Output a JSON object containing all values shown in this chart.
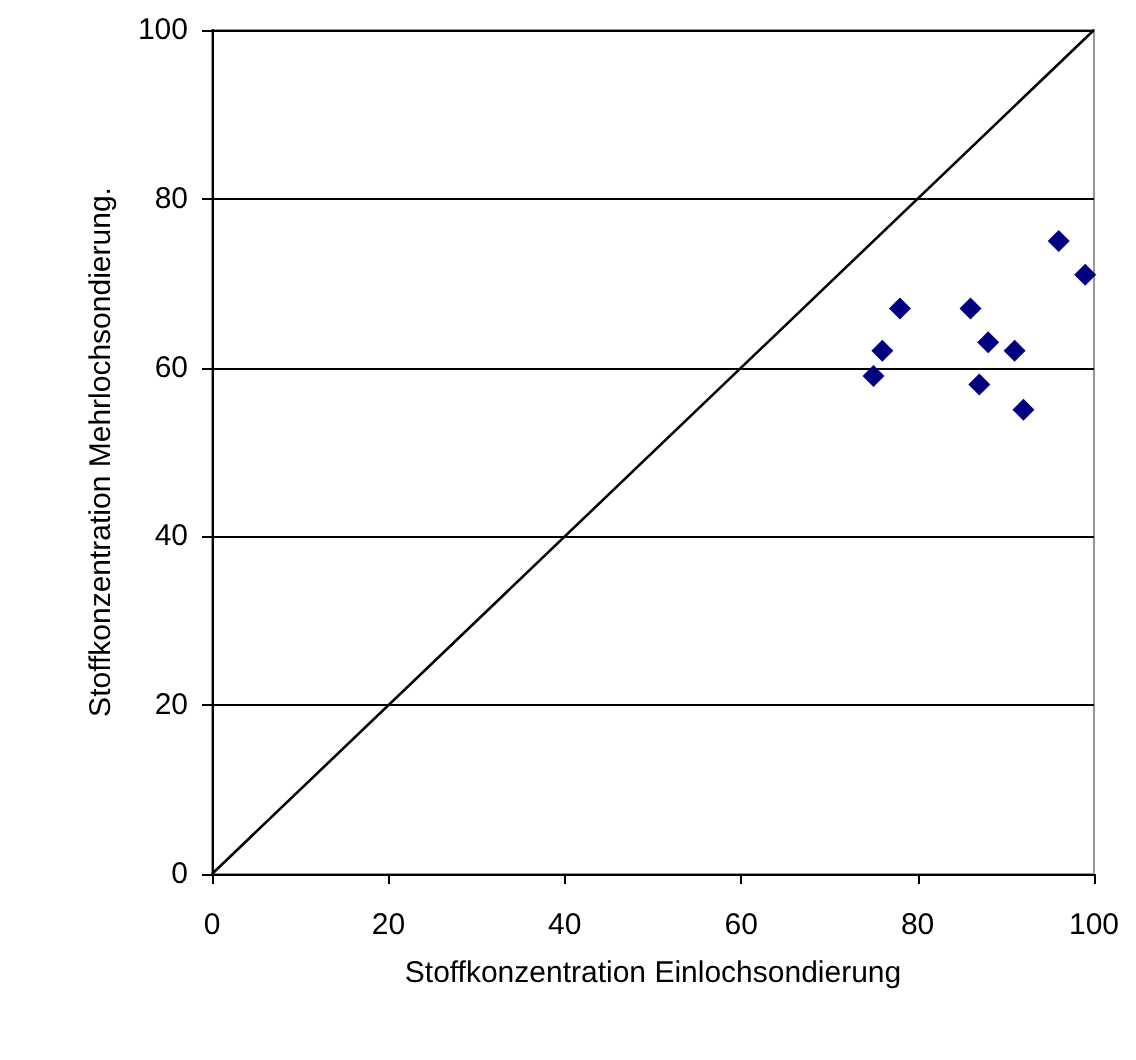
{
  "chart_data": {
    "type": "scatter",
    "xlabel": "Stoffkonzentration Einlochsondierung",
    "ylabel": "Stoffkonzentration Mehrlochsondierung.",
    "xlim": [
      0,
      100
    ],
    "ylim": [
      0,
      100
    ],
    "xticks": [
      0,
      20,
      40,
      60,
      80,
      100
    ],
    "yticks": [
      0,
      20,
      40,
      60,
      80,
      100
    ],
    "grid": "y",
    "marker": "diamond",
    "series": [
      {
        "color": "#000080",
        "x": [
          75,
          76,
          78,
          86,
          87,
          88,
          91,
          92,
          96,
          99
        ],
        "values": [
          59,
          62,
          67,
          67,
          58,
          63,
          62,
          55,
          75,
          71
        ]
      },
      {
        "type": "line",
        "color": "#000000",
        "marker": "none",
        "x": [
          0,
          100
        ],
        "values": [
          0,
          100
        ]
      }
    ]
  }
}
